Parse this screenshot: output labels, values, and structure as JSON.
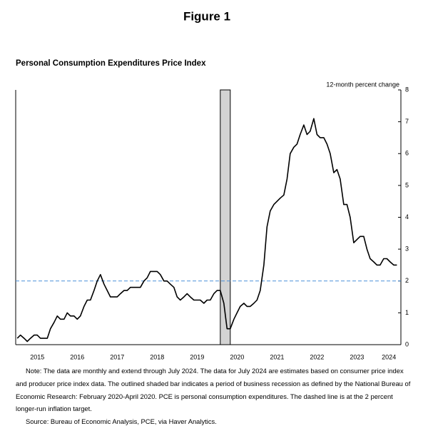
{
  "figure_title": "Figure 1",
  "chart_data": {
    "type": "line",
    "title": "Personal Consumption Expenditures Price Index",
    "y_axis_label": "12-month percent change",
    "color": "#000000",
    "x": [
      2015,
      2015.08,
      2015.17,
      2015.25,
      2015.33,
      2015.42,
      2015.5,
      2015.58,
      2015.67,
      2015.75,
      2015.83,
      2015.92,
      2016,
      2016.08,
      2016.17,
      2016.25,
      2016.33,
      2016.42,
      2016.5,
      2016.58,
      2016.67,
      2016.75,
      2016.83,
      2016.92,
      2017,
      2017.08,
      2017.17,
      2017.25,
      2017.33,
      2017.42,
      2017.5,
      2017.58,
      2017.67,
      2017.75,
      2017.83,
      2017.92,
      2018,
      2018.08,
      2018.17,
      2018.25,
      2018.33,
      2018.42,
      2018.5,
      2018.58,
      2018.67,
      2018.75,
      2018.83,
      2018.92,
      2019,
      2019.08,
      2019.17,
      2019.25,
      2019.33,
      2019.42,
      2019.5,
      2019.58,
      2019.67,
      2019.75,
      2019.83,
      2019.92,
      2020,
      2020.08,
      2020.17,
      2020.25,
      2020.33,
      2020.42,
      2020.5,
      2020.58,
      2020.67,
      2020.75,
      2020.83,
      2020.92,
      2021,
      2021.08,
      2021.17,
      2021.25,
      2021.33,
      2021.42,
      2021.5,
      2021.58,
      2021.67,
      2021.75,
      2021.83,
      2021.92,
      2022,
      2022.08,
      2022.17,
      2022.25,
      2022.33,
      2022.42,
      2022.5,
      2022.58,
      2022.67,
      2022.75,
      2022.83,
      2022.92,
      2023,
      2023.08,
      2023.17,
      2023.25,
      2023.33,
      2023.42,
      2023.5,
      2023.58,
      2023.67,
      2023.75,
      2023.83,
      2023.92,
      2024,
      2024.08,
      2024.17,
      2024.25,
      2024.33,
      2024.42,
      2024.5
    ],
    "values": [
      0.2,
      0.3,
      0.2,
      0.1,
      0.2,
      0.3,
      0.3,
      0.2,
      0.2,
      0.2,
      0.5,
      0.7,
      0.9,
      0.8,
      0.8,
      1.0,
      0.9,
      0.9,
      0.8,
      0.9,
      1.2,
      1.4,
      1.4,
      1.7,
      2.0,
      2.2,
      1.9,
      1.7,
      1.5,
      1.5,
      1.5,
      1.6,
      1.7,
      1.7,
      1.8,
      1.8,
      1.8,
      1.8,
      2.0,
      2.1,
      2.3,
      2.3,
      2.3,
      2.2,
      2.0,
      2.0,
      1.9,
      1.8,
      1.5,
      1.4,
      1.5,
      1.6,
      1.5,
      1.4,
      1.4,
      1.4,
      1.3,
      1.4,
      1.4,
      1.6,
      1.7,
      1.7,
      1.3,
      0.5,
      0.5,
      0.8,
      1.0,
      1.2,
      1.3,
      1.2,
      1.2,
      1.3,
      1.4,
      1.7,
      2.5,
      3.7,
      4.2,
      4.4,
      4.5,
      4.6,
      4.7,
      5.2,
      6.0,
      6.2,
      6.3,
      6.6,
      6.9,
      6.6,
      6.7,
      7.1,
      6.6,
      6.5,
      6.5,
      6.3,
      6.0,
      5.4,
      5.5,
      5.2,
      4.4,
      4.4,
      4.0,
      3.2,
      3.3,
      3.4,
      3.4,
      3.0,
      2.7,
      2.6,
      2.5,
      2.5,
      2.7,
      2.7,
      2.6,
      2.5,
      2.5
    ],
    "xlim": [
      2014.96,
      2024.6
    ],
    "xticks": [
      {
        "value": 2015.5,
        "label": "2015"
      },
      {
        "value": 2016.5,
        "label": "2016"
      },
      {
        "value": 2017.5,
        "label": "2017"
      },
      {
        "value": 2018.5,
        "label": "2018"
      },
      {
        "value": 2019.5,
        "label": "2019"
      },
      {
        "value": 2020.5,
        "label": "2020"
      },
      {
        "value": 2021.5,
        "label": "2021"
      },
      {
        "value": 2022.5,
        "label": "2022"
      },
      {
        "value": 2023.5,
        "label": "2023"
      },
      {
        "value": 2024.3,
        "label": "2024"
      }
    ],
    "ylim": [
      0,
      8
    ],
    "yticks": [
      0,
      1,
      2,
      3,
      4,
      5,
      6,
      7,
      8
    ],
    "recession": [
      2020.08,
      2020.33
    ],
    "reference_line": 2,
    "reference_color": "#4a90d9",
    "recession_color": "#d3d3d3"
  },
  "notes": "Note: The data are monthly and extend through July 2024. The data for July 2024 are estimates based on consumer price index and producer price index data. The outlined shaded bar indicates a period of business recession as defined by the National Bureau of Economic Research: February 2020-April 2020. PCE is personal consumption expenditures. The dashed line is at the 2 percent longer-run inflation target.",
  "source": "Source: Bureau of Economic Analysis, PCE, via Haver Analytics."
}
